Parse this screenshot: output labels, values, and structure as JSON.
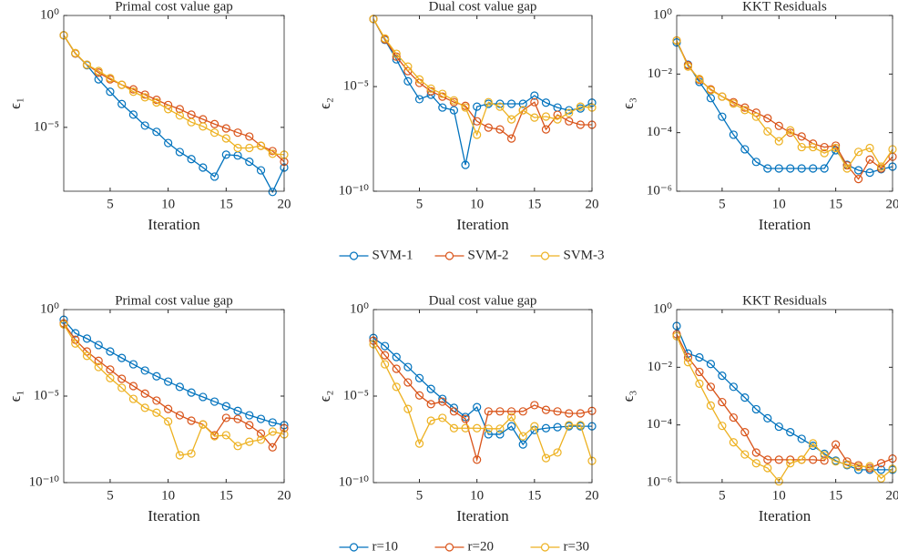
{
  "chart_data": [
    {
      "type": "line",
      "title": "Primal cost value gap",
      "xlabel": "Iteration",
      "ylabel": "ϵ₁",
      "yscale": "log",
      "x": [
        1,
        2,
        3,
        4,
        5,
        6,
        7,
        8,
        9,
        10,
        11,
        12,
        13,
        14,
        15,
        16,
        17,
        18,
        19,
        20
      ],
      "xlim": [
        1,
        20
      ],
      "xticks": [
        5,
        10,
        15,
        20
      ],
      "ylim": [
        1.4e-08,
        1
      ],
      "yticks": [
        {
          "value": 1,
          "label": "10⁰"
        },
        {
          "value": 1e-05,
          "label": "10⁻⁵"
        }
      ],
      "series": [
        {
          "name": "SVM-1",
          "color": "#0072bd",
          "values": [
            0.13,
            0.02,
            0.006,
            0.0014,
            0.00039,
            0.00011,
            3.7e-05,
            1.2e-05,
            6.3e-06,
            2e-06,
            7.9e-07,
            3.8e-07,
            1.6e-07,
            6.3e-08,
            6e-07,
            5.5e-07,
            2.9e-07,
            1.2e-07,
            1.3e-08,
            1.6e-07
          ]
        },
        {
          "name": "SVM-2",
          "color": "#d95319",
          "values": [
            0.13,
            0.02,
            0.0063,
            0.0028,
            0.0014,
            0.0008,
            0.0005,
            0.00029,
            0.00017,
            0.0001,
            6.5e-05,
            3.7e-05,
            2.3e-05,
            1.4e-05,
            9e-06,
            5.8e-06,
            3.9e-06,
            1.5e-06,
            8.7e-07,
            2.9e-07
          ]
        },
        {
          "name": "SVM-3",
          "color": "#edb120",
          "values": [
            0.13,
            0.021,
            0.0063,
            0.0033,
            0.0016,
            0.0008,
            0.00039,
            0.00022,
            0.00013,
            6.5e-05,
            3.4e-05,
            1.7e-05,
            1.1e-05,
            5.8e-06,
            3.2e-06,
            1.2e-06,
            1.2e-06,
            1.5e-06,
            6.6e-07,
            6e-07
          ]
        }
      ]
    },
    {
      "type": "line",
      "title": "Dual cost value gap",
      "xlabel": "Iteration",
      "ylabel": "ϵ₂",
      "yscale": "log",
      "legend": "below",
      "x": [
        1,
        2,
        3,
        4,
        5,
        6,
        7,
        8,
        9,
        10,
        11,
        12,
        13,
        14,
        15,
        16,
        17,
        18,
        19,
        20
      ],
      "xlim": [
        1,
        20
      ],
      "xticks": [
        5,
        10,
        15,
        20
      ],
      "ylim": [
        1e-10,
        0.025
      ],
      "yticks": [
        {
          "value": 1e-05,
          "label": "10⁻⁵"
        },
        {
          "value": 1e-10,
          "label": "10⁻¹⁰"
        }
      ],
      "series": [
        {
          "name": "SVM-1",
          "color": "#0072bd",
          "values": [
            0.017,
            0.0017,
            0.0002,
            1.8e-05,
            2.5e-06,
            4.1e-06,
            1e-06,
            7.4e-07,
            1.8e-09,
            1.1e-06,
            1.5e-06,
            1.5e-06,
            1.5e-06,
            1.5e-06,
            3.7e-06,
            1.7e-06,
            1e-06,
            7.4e-07,
            9e-07,
            1.7e-06
          ]
        },
        {
          "name": "SVM-2",
          "color": "#d95319",
          "values": [
            0.017,
            0.0018,
            0.00027,
            5.5e-05,
            1.5e-05,
            6e-06,
            3.3e-06,
            1.8e-06,
            1.2e-06,
            2.2e-07,
            1.1e-07,
            9e-08,
            3.3e-08,
            7.4e-07,
            1.8e-06,
            9e-08,
            4.5e-07,
            2.2e-07,
            1.5e-07,
            1.5e-07
          ]
        },
        {
          "name": "SVM-3",
          "color": "#edb120",
          "values": [
            0.017,
            0.002,
            0.00037,
            9e-05,
            2.2e-05,
            8e-06,
            4.5e-06,
            2.2e-06,
            1e-06,
            5e-08,
            1.8e-06,
            1.1e-06,
            2.7e-07,
            7.4e-07,
            3.3e-07,
            3.7e-07,
            2.7e-07,
            5.5e-07,
            1.1e-06,
            1e-06
          ]
        }
      ]
    },
    {
      "type": "line",
      "title": "KKT Residuals",
      "xlabel": "Iteration",
      "ylabel": "ϵ₃",
      "yscale": "log",
      "x": [
        1,
        2,
        3,
        4,
        5,
        6,
        7,
        8,
        9,
        10,
        11,
        12,
        13,
        14,
        15,
        16,
        17,
        18,
        19,
        20
      ],
      "xlim": [
        1,
        20
      ],
      "xticks": [
        5,
        10,
        15,
        20
      ],
      "ylim": [
        1e-06,
        1
      ],
      "yticks": [
        {
          "value": 1,
          "label": "10⁰"
        },
        {
          "value": 0.01,
          "label": "10⁻²"
        },
        {
          "value": 0.0001,
          "label": "10⁻⁴"
        },
        {
          "value": 1e-06,
          "label": "10⁻⁶"
        }
      ],
      "series": [
        {
          "name": "SVM-1",
          "color": "#0072bd",
          "values": [
            0.12,
            0.021,
            0.0054,
            0.0015,
            0.00035,
            8.5e-05,
            2.7e-05,
            1e-05,
            6e-06,
            6e-06,
            6e-06,
            6e-06,
            6e-06,
            6e-06,
            2.5e-05,
            8e-06,
            5.2e-06,
            4.3e-06,
            5.6e-06,
            6.9e-06
          ]
        },
        {
          "name": "SVM-2",
          "color": "#d95319",
          "values": [
            0.14,
            0.02,
            0.0063,
            0.003,
            0.0017,
            0.0011,
            0.00072,
            0.00048,
            0.00031,
            0.00017,
            0.0001,
            7.4e-05,
            4.2e-05,
            3.2e-05,
            3.6e-05,
            7.6e-06,
            2.6e-06,
            1.2e-05,
            6e-06,
            1.5e-05
          ]
        },
        {
          "name": "SVM-3",
          "color": "#edb120",
          "values": [
            0.14,
            0.018,
            0.0068,
            0.0028,
            0.0017,
            0.00098,
            0.00059,
            0.00035,
            0.00011,
            5.1e-05,
            0.00012,
            3.2e-05,
            3.2e-05,
            2e-05,
            3e-05,
            6e-06,
            2.2e-05,
            3e-05,
            6.9e-06,
            2.7e-05
          ]
        }
      ]
    },
    {
      "type": "line",
      "title": "Primal cost value gap",
      "xlabel": "Iteration",
      "ylabel": "ϵ₁",
      "yscale": "log",
      "x": [
        1,
        2,
        3,
        4,
        5,
        6,
        7,
        8,
        9,
        10,
        11,
        12,
        13,
        14,
        15,
        16,
        17,
        18,
        19,
        20
      ],
      "xlim": [
        1,
        20
      ],
      "xticks": [
        5,
        10,
        15,
        20
      ],
      "ylim": [
        1e-10,
        1
      ],
      "yticks": [
        {
          "value": 1,
          "label": "10⁰"
        },
        {
          "value": 1e-05,
          "label": "10⁻⁵"
        },
        {
          "value": 1e-10,
          "label": "10⁻¹⁰"
        }
      ],
      "series": [
        {
          "name": "r=10",
          "color": "#0072bd",
          "values": [
            0.26,
            0.043,
            0.021,
            0.0089,
            0.0038,
            0.0016,
            0.00069,
            0.0003,
            0.00014,
            6.9e-05,
            3.4e-05,
            1.6e-05,
            8.9e-06,
            4.8e-06,
            2.6e-06,
            1.4e-06,
            7.8e-07,
            4.8e-07,
            3e-07,
            2.1e-07
          ]
        },
        {
          "name": "r=20",
          "color": "#d95319",
          "values": [
            0.16,
            0.018,
            0.0038,
            0.0011,
            0.00034,
            0.0001,
            3.8e-05,
            1.4e-05,
            5.5e-06,
            1.8e-06,
            7.8e-07,
            3.8e-07,
            2.3e-07,
            5.5e-08,
            5.5e-07,
            4.8e-07,
            2.1e-07,
            6.9e-08,
            1.1e-08,
            1.4e-07
          ]
        },
        {
          "name": "r=30",
          "color": "#edb120",
          "values": [
            0.14,
            0.011,
            0.0021,
            0.00048,
            0.00011,
            3e-05,
            6.9e-06,
            2.1e-06,
            1.1e-06,
            3.4e-07,
            3.8e-09,
            4.8e-09,
            2.3e-07,
            4.8e-08,
            5.5e-08,
            1.3e-08,
            2.3e-08,
            3e-08,
            8.9e-08,
            6.2e-08
          ]
        }
      ]
    },
    {
      "type": "line",
      "title": "Dual cost value gap",
      "xlabel": "Iteration",
      "ylabel": "ϵ₂",
      "yscale": "log",
      "legend": "below",
      "x": [
        1,
        2,
        3,
        4,
        5,
        6,
        7,
        8,
        9,
        10,
        11,
        12,
        13,
        14,
        15,
        16,
        17,
        18,
        19,
        20
      ],
      "xlim": [
        1,
        20
      ],
      "xticks": [
        5,
        10,
        15,
        20
      ],
      "ylim": [
        1e-10,
        1
      ],
      "yticks": [
        {
          "value": 1,
          "label": "10⁰"
        },
        {
          "value": 1e-05,
          "label": "10⁻⁵"
        },
        {
          "value": 1e-10,
          "label": "10⁻¹⁰"
        }
      ],
      "series": [
        {
          "name": "r=10",
          "color": "#0072bd",
          "values": [
            0.023,
            0.0078,
            0.0018,
            0.00048,
            0.00011,
            2.6e-05,
            6.9e-06,
            2.1e-06,
            6.2e-07,
            2.3e-06,
            6.2e-08,
            6.2e-08,
            1.8e-07,
            1.6e-08,
            1.1e-07,
            1.4e-07,
            1.6e-07,
            1.8e-07,
            1.8e-07,
            1.8e-07
          ]
        },
        {
          "name": "r=20",
          "color": "#d95319",
          "values": [
            0.016,
            0.0023,
            0.00038,
            6.2e-05,
            1.1e-05,
            3.4e-06,
            4.8e-06,
            1.3e-06,
            4.8e-07,
            2.1e-09,
            1.3e-06,
            1.3e-06,
            1.3e-06,
            1.3e-06,
            3e-06,
            1.6e-06,
            1.3e-06,
            1e-06,
            1e-06,
            1.4e-06
          ]
        },
        {
          "name": "r=30",
          "color": "#edb120",
          "values": [
            0.01,
            0.00069,
            3.4e-05,
            1.8e-06,
            1.8e-08,
            3.8e-07,
            5.5e-07,
            1.4e-07,
            1.4e-07,
            1.4e-07,
            1.3e-07,
            1.3e-07,
            6.2e-07,
            4.8e-08,
            1.8e-07,
            2.6e-09,
            5.5e-09,
            2.1e-07,
            2.1e-07,
            1.8e-09
          ]
        }
      ]
    },
    {
      "type": "line",
      "title": "KKT Residuals",
      "xlabel": "Iteration",
      "ylabel": "ϵ₃",
      "yscale": "log",
      "x": [
        1,
        2,
        3,
        4,
        5,
        6,
        7,
        8,
        9,
        10,
        11,
        12,
        13,
        14,
        15,
        16,
        17,
        18,
        19,
        20
      ],
      "xlim": [
        1,
        20
      ],
      "xticks": [
        5,
        10,
        15,
        20
      ],
      "ylim": [
        1e-06,
        1
      ],
      "yticks": [
        {
          "value": 1,
          "label": "10⁰"
        },
        {
          "value": 0.01,
          "label": "10⁻²"
        },
        {
          "value": 0.0001,
          "label": "10⁻⁴"
        },
        {
          "value": 1e-06,
          "label": "10⁻⁶"
        }
      ],
      "series": [
        {
          "name": "r=10",
          "color": "#0072bd",
          "values": [
            0.27,
            0.03,
            0.022,
            0.013,
            0.0051,
            0.0021,
            0.00089,
            0.00035,
            0.00017,
            8.7e-05,
            5.6e-05,
            3.3e-05,
            1.9e-05,
            1e-05,
            5.8e-06,
            4e-06,
            2.8e-06,
            2.8e-06,
            2.8e-06,
            2.8e-06
          ]
        },
        {
          "name": "r=20",
          "color": "#d95319",
          "values": [
            0.14,
            0.022,
            0.0069,
            0.0021,
            0.00062,
            0.00018,
            5.6e-05,
            1.1e-05,
            6.2e-06,
            6.2e-06,
            6.2e-06,
            6.2e-06,
            6.2e-06,
            5.8e-06,
            2.1e-05,
            5.4e-06,
            4e-06,
            3.2e-06,
            4.7e-06,
            6.8e-06
          ]
        },
        {
          "name": "r=30",
          "color": "#edb120",
          "values": [
            0.12,
            0.015,
            0.0027,
            0.00047,
            9.3e-05,
            2.5e-05,
            9.5e-06,
            4.7e-06,
            3.2e-06,
            1.1e-06,
            4.7e-06,
            6.2e-06,
            2.3e-05,
            8.9e-06,
            5.4e-06,
            4.3e-06,
            3.5e-06,
            3.7e-06,
            1.4e-06,
            3e-06
          ]
        }
      ]
    }
  ]
}
